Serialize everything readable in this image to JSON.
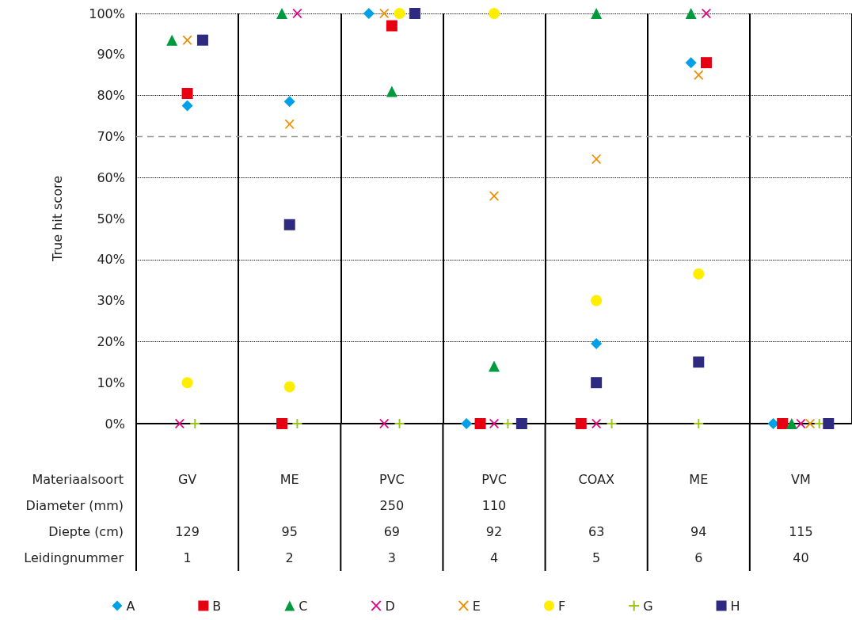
{
  "chart_data": {
    "type": "scatter",
    "ylabel": "True hit score",
    "categories": [
      "GV\n\n129\n1",
      "ME\n\n95\n2",
      "PVC\n250\n69\n3",
      "PVC\n110\n92\n4",
      "COAX\n\n63\n5",
      "ME\n\n94\n6",
      "VM\n\n115\n40"
    ],
    "ylim": [
      0,
      100
    ],
    "yticks": [
      {
        "value": 0,
        "label": "0%"
      },
      {
        "value": 10,
        "label": "10%"
      },
      {
        "value": 20,
        "label": "20%"
      },
      {
        "value": 30,
        "label": "30%"
      },
      {
        "value": 40,
        "label": "40%"
      },
      {
        "value": 50,
        "label": "50%"
      },
      {
        "value": 60,
        "label": "60%"
      },
      {
        "value": 70,
        "label": "70%"
      },
      {
        "value": 80,
        "label": "80%"
      },
      {
        "value": 90,
        "label": "90%"
      },
      {
        "value": 100,
        "label": "100%"
      }
    ],
    "grid": true,
    "legend": "bottom",
    "ref_lines": [
      {
        "axis": "y",
        "value": 70,
        "color": "#999999",
        "line_style": "dashed"
      }
    ],
    "annotations": [
      "Materiaalsoort",
      "Diameter (mm)",
      "Diepte (cm)",
      "Leidingnummer"
    ],
    "series": [
      {
        "name": "A",
        "color": "#00a0e9",
        "marker": "diamond",
        "values": [
          77.5,
          78.5,
          100,
          0,
          19.5,
          88,
          0
        ]
      },
      {
        "name": "B",
        "color": "#e60012",
        "marker": "square",
        "values": [
          80.5,
          0,
          97,
          0,
          0,
          88,
          0
        ]
      },
      {
        "name": "C",
        "color": "#009a3e",
        "marker": "triangle",
        "values": [
          93.5,
          100,
          81,
          14,
          100,
          100,
          0
        ]
      },
      {
        "name": "D",
        "color": "#e4007f",
        "marker": "cross",
        "values": [
          0,
          100,
          0,
          0,
          0,
          100,
          0
        ]
      },
      {
        "name": "E",
        "color": "#f08c00",
        "marker": "cross",
        "values": [
          93.5,
          73,
          100,
          55.5,
          64.5,
          85,
          0
        ]
      },
      {
        "name": "F",
        "color": "#ffee00",
        "marker": "circle",
        "values": [
          10,
          9,
          100,
          100,
          30,
          36.5,
          null
        ]
      },
      {
        "name": "G",
        "color": "#9bc31e",
        "marker": "plus",
        "values": [
          0,
          0,
          0,
          0,
          0,
          0,
          0
        ]
      },
      {
        "name": "H",
        "color": "#2e2a7f",
        "marker": "square",
        "values": [
          93.5,
          48.5,
          100,
          0,
          10,
          15,
          0
        ]
      }
    ]
  }
}
